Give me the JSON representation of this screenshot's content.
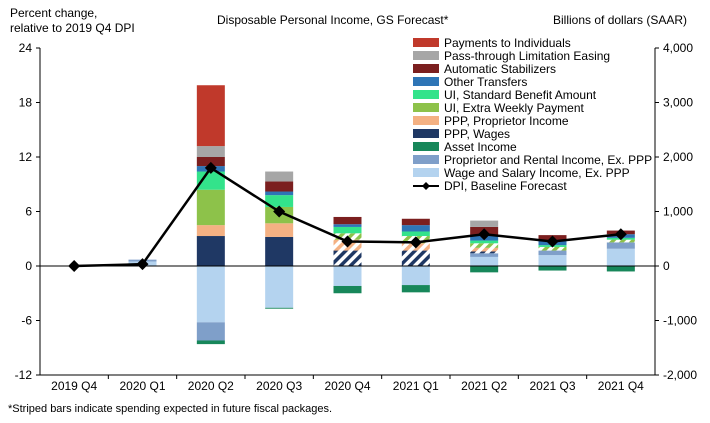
{
  "chart_data": {
    "type": "bar",
    "title": "Disposable Personal Income, GS Forecast*",
    "ylabel_left": [
      "Percent change,",
      "relative  to 2019 Q4 DPI"
    ],
    "ylabel_right": "Billions of dollars (SAAR)",
    "ylim_left": [
      -12,
      24
    ],
    "ylim_right": [
      -2000,
      4000
    ],
    "yticks_left": [
      -12,
      -6,
      0,
      6,
      12,
      18,
      24
    ],
    "yticks_right": [
      -2000,
      -1000,
      0,
      1000,
      2000,
      3000,
      4000
    ],
    "ytick_labels_left": [
      "-12",
      "-6",
      "0",
      "6",
      "12",
      "18",
      "24"
    ],
    "ytick_labels_right": [
      "-2,000",
      "-1,000",
      "0",
      "1,000",
      "2,000",
      "3,000",
      "4,000"
    ],
    "categories": [
      "2019 Q4",
      "2020 Q1",
      "2020 Q2",
      "2020 Q3",
      "2020 Q4",
      "2021 Q1",
      "2021 Q2",
      "2021 Q3",
      "2021 Q4"
    ],
    "series": [
      {
        "name": "Payments to Individuals",
        "color": "#c0392b",
        "values": [
          0,
          0,
          6.7,
          0,
          0,
          0,
          0,
          0,
          0
        ]
      },
      {
        "name": "Pass-through Limitation Easing",
        "color": "#a6a6a6",
        "values": [
          0,
          0,
          1.2,
          1.1,
          0,
          0,
          0.7,
          0,
          0
        ]
      },
      {
        "name": "Automatic Stabilizers",
        "color": "#7b1f1f",
        "values": [
          0,
          0,
          1.0,
          1.1,
          0.8,
          0.7,
          0.9,
          0.6,
          0.4
        ]
      },
      {
        "name": "Other Transfers",
        "color": "#2e75b6",
        "values": [
          0,
          0,
          0.6,
          0.4,
          0.3,
          0.7,
          0.6,
          0.5,
          0.4
        ]
      },
      {
        "name": "UI, Standard Benefit Amount",
        "color": "#33e38b",
        "values": [
          0,
          0,
          2.0,
          1.3,
          0.7,
          0.5,
          0.3,
          0.2,
          0.2
        ]
      },
      {
        "name": "UI, Extra Weekly Payment",
        "color": "#8dc24a",
        "values": [
          0,
          0,
          3.9,
          1.8,
          0.7,
          0.8,
          0.5,
          0.4,
          0.3
        ]
      },
      {
        "name": "PPP, Proprietor Income",
        "color": "#f4b183",
        "values": [
          0,
          0,
          1.2,
          1.5,
          1.2,
          0.8,
          0.4,
          0,
          0
        ]
      },
      {
        "name": "PPP, Wages",
        "color": "#1f3864",
        "values": [
          0,
          0,
          3.3,
          3.2,
          1.7,
          1.7,
          0.2,
          0,
          0
        ]
      },
      {
        "name": "Asset Income",
        "color": "#17875a",
        "values": [
          0,
          0,
          -0.4,
          -0.1,
          -0.8,
          -0.8,
          -0.7,
          -0.5,
          -0.6
        ]
      },
      {
        "name": "Proprietor and Rental Income, Ex. PPP",
        "color": "#7f9fc9",
        "values": [
          0,
          0.2,
          -2.0,
          0,
          0,
          0,
          0.4,
          0.5,
          0.7
        ]
      },
      {
        "name": "Wage and Salary Income, Ex. PPP",
        "color": "#b4d3ef",
        "values": [
          0,
          0.5,
          -6.2,
          -4.6,
          -2.2,
          -2.1,
          1.0,
          1.2,
          1.9
        ]
      },
      {
        "name": "DPI, Baseline Forecast",
        "color": "#000000",
        "values": [
          0,
          0.2,
          10.8,
          6.0,
          2.7,
          2.6,
          3.5,
          2.7,
          3.5
        ]
      }
    ],
    "striped_note": "*Striped bars indicate spending expected in future fiscal packages.",
    "legend_position": "top-right",
    "grid": false
  }
}
